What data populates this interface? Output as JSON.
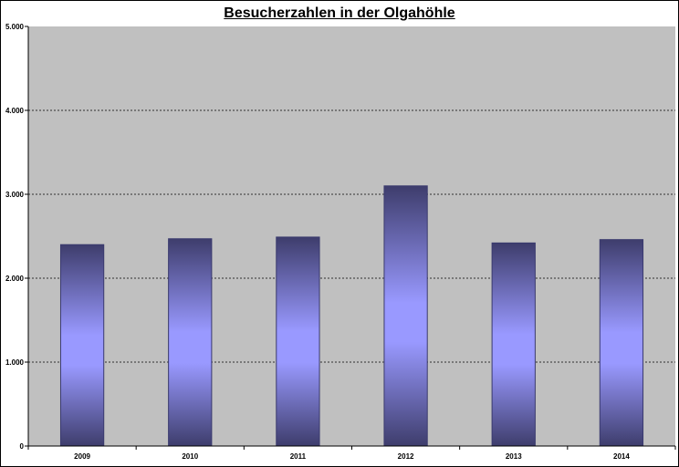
{
  "chart_data": {
    "type": "bar",
    "title": "Besucherzahlen in der Olgahöhle",
    "categories": [
      "2009",
      "2010",
      "2011",
      "2012",
      "2013",
      "2014"
    ],
    "values": [
      2400,
      2470,
      2490,
      3100,
      2420,
      2460
    ],
    "ylim": [
      0,
      5000
    ],
    "yticks": [
      0,
      1000,
      2000,
      3000,
      4000,
      5000
    ],
    "ytick_labels": [
      "0",
      "1.000",
      "2.000",
      "3.000",
      "4.000",
      "5.000"
    ],
    "xlabel": "",
    "ylabel": "",
    "grid": "horizontal dotted",
    "legend": "none",
    "colors": {
      "plot_background": "#c0c0c0",
      "bar_edge": "#3a3a6e",
      "bar_center": "#9999ff",
      "bar_dark": "#3e3d6c",
      "grid": "#000000"
    }
  }
}
